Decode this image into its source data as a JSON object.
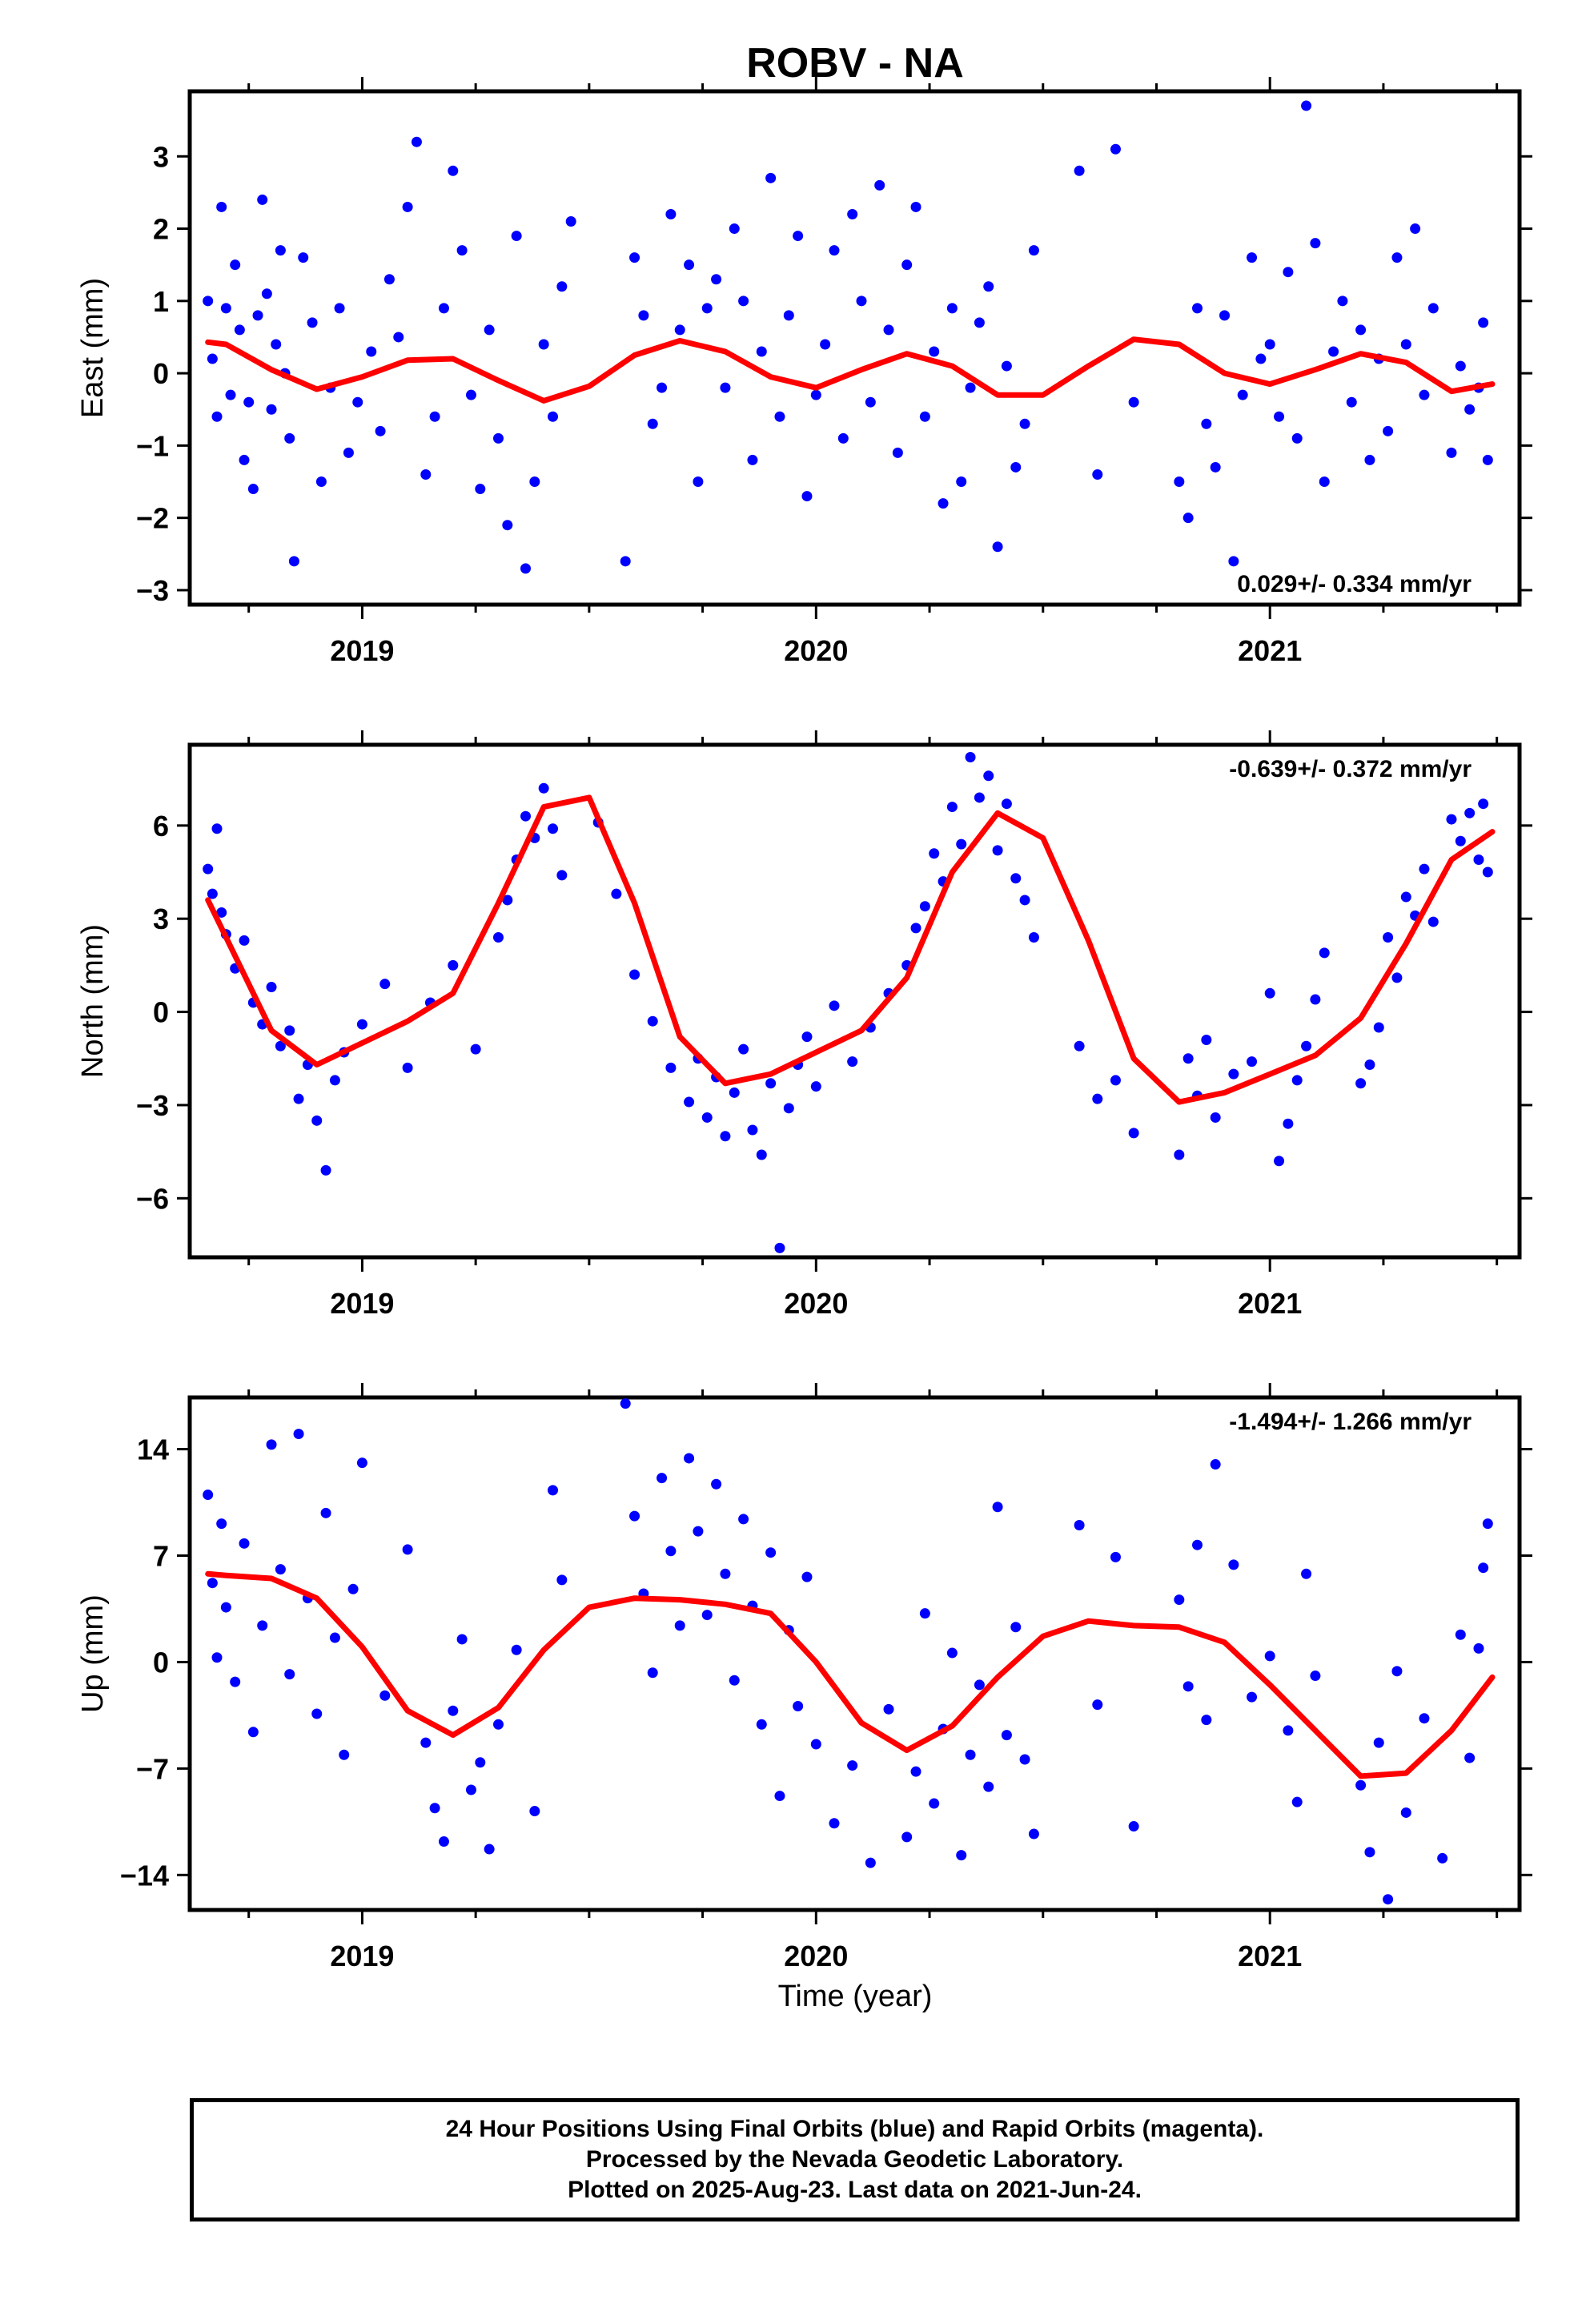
{
  "figure": {
    "title": "ROBV - NA",
    "xlabel": "Time (year)",
    "footer": [
      "24 Hour Positions Using Final Orbits (blue) and Rapid Orbits (magenta).",
      "Processed by the Nevada Geodetic Laboratory.",
      "Plotted on 2025-Aug-23. Last data on 2021-Jun-24."
    ],
    "colors": {
      "points": "#0000ff",
      "fit": "#ff0000",
      "axes": "#000000"
    }
  },
  "chart_data": [
    {
      "type": "scatter",
      "ylabel": "East (mm)",
      "rate_label": "0.029+/- 0.334 mm/yr",
      "xlim": [
        2018.62,
        2021.55
      ],
      "ylim": [
        -3.2,
        3.9
      ],
      "xticks": [
        2019,
        2020,
        2021
      ],
      "yticks": [
        -3,
        -2,
        -1,
        0,
        1,
        2,
        3
      ],
      "ytick_labels": [
        "−3",
        "−2",
        "−1",
        "0",
        "1",
        "2",
        "3"
      ],
      "grid": false,
      "series": [
        {
          "role": "observations",
          "x": [
            2018.66,
            2018.67,
            2018.68,
            2018.69,
            2018.7,
            2018.71,
            2018.72,
            2018.73,
            2018.74,
            2018.75,
            2018.76,
            2018.77,
            2018.78,
            2018.79,
            2018.8,
            2018.81,
            2018.82,
            2018.83,
            2018.84,
            2018.85,
            2018.87,
            2018.89,
            2018.91,
            2018.93,
            2018.95,
            2018.97,
            2018.99,
            2019.02,
            2019.04,
            2019.06,
            2019.08,
            2019.1,
            2019.12,
            2019.14,
            2019.16,
            2019.18,
            2019.2,
            2019.22,
            2019.24,
            2019.26,
            2019.28,
            2019.3,
            2019.32,
            2019.34,
            2019.36,
            2019.38,
            2019.4,
            2019.42,
            2019.44,
            2019.46,
            2019.58,
            2019.6,
            2019.62,
            2019.64,
            2019.66,
            2019.68,
            2019.7,
            2019.72,
            2019.74,
            2019.76,
            2019.78,
            2019.8,
            2019.82,
            2019.84,
            2019.86,
            2019.88,
            2019.9,
            2019.92,
            2019.94,
            2019.96,
            2019.98,
            2020.0,
            2020.02,
            2020.04,
            2020.06,
            2020.08,
            2020.1,
            2020.12,
            2020.14,
            2020.16,
            2020.18,
            2020.2,
            2020.22,
            2020.24,
            2020.26,
            2020.28,
            2020.3,
            2020.32,
            2020.34,
            2020.36,
            2020.38,
            2020.4,
            2020.42,
            2020.44,
            2020.46,
            2020.48,
            2020.58,
            2020.62,
            2020.66,
            2020.7,
            2020.8,
            2020.82,
            2020.84,
            2020.86,
            2020.88,
            2020.9,
            2020.92,
            2020.94,
            2020.96,
            2020.98,
            2021.0,
            2021.02,
            2021.04,
            2021.06,
            2021.08,
            2021.1,
            2021.12,
            2021.14,
            2021.16,
            2021.18,
            2021.2,
            2021.22,
            2021.24,
            2021.26,
            2021.28,
            2021.3,
            2021.32,
            2021.34,
            2021.36,
            2021.4,
            2021.42,
            2021.44,
            2021.46,
            2021.47,
            2021.48
          ],
          "y": [
            1.0,
            0.2,
            -0.6,
            2.3,
            0.9,
            -0.3,
            1.5,
            0.6,
            -1.2,
            -0.4,
            -1.6,
            0.8,
            2.4,
            1.1,
            -0.5,
            0.4,
            1.7,
            0.0,
            -0.9,
            -2.6,
            1.6,
            0.7,
            -1.5,
            -0.2,
            0.9,
            -1.1,
            -0.4,
            0.3,
            -0.8,
            1.3,
            0.5,
            2.3,
            3.2,
            -1.4,
            -0.6,
            0.9,
            2.8,
            1.7,
            -0.3,
            -1.6,
            0.6,
            -0.9,
            -2.1,
            1.9,
            -2.7,
            -1.5,
            0.4,
            -0.6,
            1.2,
            2.1,
            -2.6,
            1.6,
            0.8,
            -0.7,
            -0.2,
            2.2,
            0.6,
            1.5,
            -1.5,
            0.9,
            1.3,
            -0.2,
            2.0,
            1.0,
            -1.2,
            0.3,
            2.7,
            -0.6,
            0.8,
            1.9,
            -1.7,
            -0.3,
            0.4,
            1.7,
            -0.9,
            2.2,
            1.0,
            -0.4,
            2.6,
            0.6,
            -1.1,
            1.5,
            2.3,
            -0.6,
            0.3,
            -1.8,
            0.9,
            -1.5,
            -0.2,
            0.7,
            1.2,
            -2.4,
            0.1,
            -1.3,
            -0.7,
            1.7,
            2.8,
            -1.4,
            3.1,
            -0.4,
            -1.5,
            -2.0,
            0.9,
            -0.7,
            -1.3,
            0.8,
            -2.6,
            -0.3,
            1.6,
            0.2,
            0.4,
            -0.6,
            1.4,
            -0.9,
            3.7,
            1.8,
            -1.5,
            0.3,
            1.0,
            -0.4,
            0.6,
            -1.2,
            0.2,
            -0.8,
            1.6,
            0.4,
            2.0,
            -0.3,
            0.9,
            -1.1,
            0.1,
            -0.5,
            -0.2,
            0.7,
            -1.2
          ]
        },
        {
          "role": "fit",
          "x": [
            2018.66,
            2018.7,
            2018.8,
            2018.9,
            2019.0,
            2019.1,
            2019.2,
            2019.3,
            2019.4,
            2019.5,
            2019.6,
            2019.7,
            2019.8,
            2019.9,
            2020.0,
            2020.1,
            2020.2,
            2020.3,
            2020.4,
            2020.5,
            2020.6,
            2020.7,
            2020.8,
            2020.9,
            2021.0,
            2021.1,
            2021.2,
            2021.3,
            2021.4,
            2021.49
          ],
          "y": [
            0.43,
            0.4,
            0.05,
            -0.22,
            -0.05,
            0.18,
            0.2,
            -0.1,
            -0.38,
            -0.18,
            0.25,
            0.45,
            0.3,
            -0.05,
            -0.2,
            0.05,
            0.27,
            0.1,
            -0.3,
            -0.3,
            0.1,
            0.47,
            0.4,
            0.0,
            -0.15,
            0.05,
            0.27,
            0.15,
            -0.25,
            -0.15
          ]
        }
      ]
    },
    {
      "type": "scatter",
      "ylabel": "North (mm)",
      "rate_label": "-0.639+/- 0.372 mm/yr",
      "xlim": [
        2018.62,
        2021.55
      ],
      "ylim": [
        -7.9,
        8.6
      ],
      "xticks": [
        2019,
        2020,
        2021
      ],
      "yticks": [
        -6,
        -3,
        0,
        3,
        6
      ],
      "ytick_labels": [
        "−6",
        "−3",
        "0",
        "3",
        "6"
      ],
      "grid": false,
      "series": [
        {
          "role": "observations",
          "x": [
            2018.66,
            2018.67,
            2018.68,
            2018.69,
            2018.7,
            2018.72,
            2018.74,
            2018.76,
            2018.78,
            2018.8,
            2018.82,
            2018.84,
            2018.86,
            2018.88,
            2018.9,
            2018.92,
            2018.94,
            2018.96,
            2019.0,
            2019.05,
            2019.1,
            2019.15,
            2019.2,
            2019.25,
            2019.3,
            2019.32,
            2019.34,
            2019.36,
            2019.38,
            2019.4,
            2019.42,
            2019.44,
            2019.52,
            2019.56,
            2019.6,
            2019.64,
            2019.68,
            2019.72,
            2019.74,
            2019.76,
            2019.78,
            2019.8,
            2019.82,
            2019.84,
            2019.86,
            2019.88,
            2019.9,
            2019.92,
            2019.94,
            2019.96,
            2019.98,
            2020.0,
            2020.04,
            2020.08,
            2020.12,
            2020.16,
            2020.2,
            2020.22,
            2020.24,
            2020.26,
            2020.28,
            2020.3,
            2020.32,
            2020.34,
            2020.36,
            2020.38,
            2020.4,
            2020.42,
            2020.44,
            2020.46,
            2020.48,
            2020.58,
            2020.62,
            2020.66,
            2020.7,
            2020.8,
            2020.82,
            2020.84,
            2020.86,
            2020.88,
            2020.92,
            2020.96,
            2021.0,
            2021.02,
            2021.04,
            2021.06,
            2021.08,
            2021.1,
            2021.12,
            2021.2,
            2021.22,
            2021.24,
            2021.26,
            2021.28,
            2021.3,
            2021.32,
            2021.34,
            2021.36,
            2021.4,
            2021.42,
            2021.44,
            2021.46,
            2021.47,
            2021.48
          ],
          "y": [
            4.6,
            3.8,
            5.9,
            3.2,
            2.5,
            1.4,
            2.3,
            0.3,
            -0.4,
            0.8,
            -1.1,
            -0.6,
            -2.8,
            -1.7,
            -3.5,
            -5.1,
            -2.2,
            -1.3,
            -0.4,
            0.9,
            -1.8,
            0.3,
            1.5,
            -1.2,
            2.4,
            3.6,
            4.9,
            6.3,
            5.6,
            7.2,
            5.9,
            4.4,
            6.1,
            3.8,
            1.2,
            -0.3,
            -1.8,
            -2.9,
            -1.5,
            -3.4,
            -2.1,
            -4.0,
            -2.6,
            -1.2,
            -3.8,
            -4.6,
            -2.3,
            -7.6,
            -3.1,
            -1.7,
            -0.8,
            -2.4,
            0.2,
            -1.6,
            -0.5,
            0.6,
            1.5,
            2.7,
            3.4,
            5.1,
            4.2,
            6.6,
            5.4,
            8.2,
            6.9,
            7.6,
            5.2,
            6.7,
            4.3,
            3.6,
            2.4,
            -1.1,
            -2.8,
            -2.2,
            -3.9,
            -4.6,
            -1.5,
            -2.7,
            -0.9,
            -3.4,
            -2.0,
            -1.6,
            0.6,
            -4.8,
            -3.6,
            -2.2,
            -1.1,
            0.4,
            1.9,
            -2.3,
            -1.7,
            -0.5,
            2.4,
            1.1,
            3.7,
            3.1,
            4.6,
            2.9,
            6.2,
            5.5,
            6.4,
            4.9,
            6.7,
            4.5
          ]
        },
        {
          "role": "fit",
          "x": [
            2018.66,
            2018.7,
            2018.8,
            2018.9,
            2019.0,
            2019.1,
            2019.2,
            2019.3,
            2019.4,
            2019.5,
            2019.6,
            2019.7,
            2019.8,
            2019.9,
            2020.0,
            2020.1,
            2020.2,
            2020.3,
            2020.4,
            2020.5,
            2020.6,
            2020.7,
            2020.8,
            2020.9,
            2021.0,
            2021.1,
            2021.2,
            2021.3,
            2021.4,
            2021.49
          ],
          "y": [
            3.6,
            2.4,
            -0.6,
            -1.7,
            -1.0,
            -0.3,
            0.6,
            3.5,
            6.6,
            6.9,
            3.5,
            -0.8,
            -2.3,
            -2.0,
            -1.3,
            -0.6,
            1.1,
            4.5,
            6.4,
            5.6,
            2.3,
            -1.5,
            -2.9,
            -2.6,
            -2.0,
            -1.4,
            -0.2,
            2.2,
            4.9,
            5.8
          ]
        }
      ]
    },
    {
      "type": "scatter",
      "ylabel": "Up (mm)",
      "rate_label": "-1.494+/- 1.266 mm/yr",
      "xlim": [
        2018.62,
        2021.55
      ],
      "ylim": [
        -16.3,
        17.4
      ],
      "xticks": [
        2019,
        2020,
        2021
      ],
      "yticks": [
        -14,
        -7,
        0,
        7,
        14
      ],
      "ytick_labels": [
        "−14",
        "−7",
        "0",
        "7",
        "14"
      ],
      "grid": false,
      "series": [
        {
          "role": "observations",
          "x": [
            2018.66,
            2018.67,
            2018.68,
            2018.69,
            2018.7,
            2018.72,
            2018.74,
            2018.76,
            2018.78,
            2018.8,
            2018.82,
            2018.84,
            2018.86,
            2018.88,
            2018.9,
            2018.92,
            2018.94,
            2018.96,
            2018.98,
            2019.0,
            2019.05,
            2019.1,
            2019.14,
            2019.16,
            2019.18,
            2019.2,
            2019.22,
            2019.24,
            2019.26,
            2019.28,
            2019.3,
            2019.34,
            2019.38,
            2019.42,
            2019.44,
            2019.58,
            2019.6,
            2019.62,
            2019.64,
            2019.66,
            2019.68,
            2019.7,
            2019.72,
            2019.74,
            2019.76,
            2019.78,
            2019.8,
            2019.82,
            2019.84,
            2019.86,
            2019.88,
            2019.9,
            2019.92,
            2019.94,
            2019.96,
            2019.98,
            2020.0,
            2020.04,
            2020.08,
            2020.12,
            2020.16,
            2020.2,
            2020.22,
            2020.24,
            2020.26,
            2020.28,
            2020.3,
            2020.32,
            2020.34,
            2020.36,
            2020.38,
            2020.4,
            2020.42,
            2020.44,
            2020.46,
            2020.48,
            2020.58,
            2020.62,
            2020.66,
            2020.7,
            2020.8,
            2020.82,
            2020.84,
            2020.86,
            2020.88,
            2020.92,
            2020.96,
            2021.0,
            2021.04,
            2021.06,
            2021.08,
            2021.1,
            2021.2,
            2021.22,
            2021.24,
            2021.26,
            2021.28,
            2021.3,
            2021.34,
            2021.38,
            2021.42,
            2021.44,
            2021.46,
            2021.47,
            2021.48
          ],
          "y": [
            11.0,
            5.2,
            0.3,
            9.1,
            3.6,
            -1.3,
            7.8,
            -4.6,
            2.4,
            14.3,
            6.1,
            -0.8,
            15.0,
            4.2,
            -3.4,
            9.8,
            1.6,
            -6.1,
            4.8,
            13.1,
            -2.2,
            7.4,
            -5.3,
            -9.6,
            -11.8,
            -3.2,
            1.5,
            -8.4,
            -6.6,
            -12.3,
            -4.1,
            0.8,
            -9.8,
            11.3,
            5.4,
            17.0,
            9.6,
            4.5,
            -0.7,
            12.1,
            7.3,
            2.4,
            13.4,
            8.6,
            3.1,
            11.7,
            5.8,
            -1.2,
            9.4,
            3.7,
            -4.1,
            7.2,
            -8.8,
            2.1,
            -2.9,
            5.6,
            -5.4,
            -10.6,
            -6.8,
            -13.2,
            -3.1,
            -11.5,
            -7.2,
            3.2,
            -9.3,
            -4.4,
            0.6,
            -12.7,
            -6.1,
            -1.5,
            -8.2,
            10.2,
            -4.8,
            2.3,
            -6.4,
            -11.3,
            9.0,
            -2.8,
            6.9,
            -10.8,
            4.1,
            -1.6,
            7.7,
            -3.8,
            13.0,
            6.4,
            -2.3,
            0.4,
            -4.5,
            -9.2,
            5.8,
            -0.9,
            -8.1,
            -12.5,
            -5.3,
            -15.6,
            -0.6,
            -9.9,
            -3.7,
            -12.9,
            1.8,
            -6.3,
            0.9,
            6.2,
            9.1
          ]
        },
        {
          "role": "fit",
          "x": [
            2018.66,
            2018.7,
            2018.8,
            2018.9,
            2019.0,
            2019.1,
            2019.2,
            2019.3,
            2019.4,
            2019.5,
            2019.6,
            2019.7,
            2019.8,
            2019.9,
            2020.0,
            2020.1,
            2020.2,
            2020.3,
            2020.4,
            2020.5,
            2020.6,
            2020.7,
            2020.8,
            2020.9,
            2021.0,
            2021.1,
            2021.2,
            2021.3,
            2021.4,
            2021.49
          ],
          "y": [
            5.8,
            5.7,
            5.5,
            4.2,
            1.0,
            -3.2,
            -4.8,
            -3.0,
            0.8,
            3.6,
            4.2,
            4.1,
            3.8,
            3.2,
            0.0,
            -4.0,
            -5.8,
            -4.2,
            -1.0,
            1.7,
            2.7,
            2.4,
            2.3,
            1.3,
            -1.5,
            -4.5,
            -7.5,
            -7.3,
            -4.5,
            -1.0
          ]
        }
      ]
    }
  ]
}
